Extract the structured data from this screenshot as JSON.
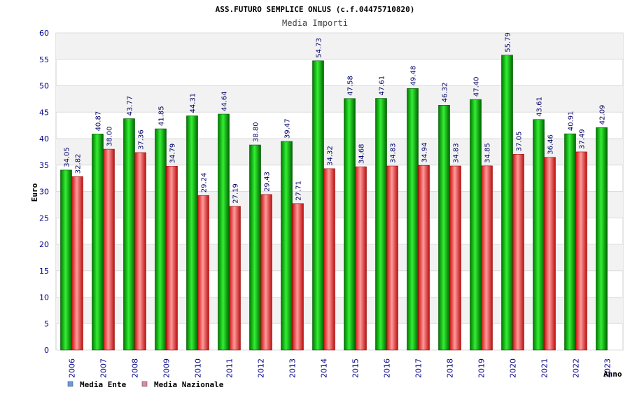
{
  "chart_data": {
    "type": "bar",
    "title": "ASS.FUTURO SEMPLICE ONLUS (c.f.04475710820)",
    "subtitle": "Media Importi",
    "xlabel": "Anno",
    "ylabel": "Euro",
    "ylim": [
      0,
      60
    ],
    "yticks": [
      "0",
      "5",
      "10",
      "15",
      "20",
      "25",
      "30",
      "35",
      "40",
      "45",
      "50",
      "55",
      "60"
    ],
    "grid": true,
    "legend_position": "bottom-left",
    "categories": [
      "2006",
      "2007",
      "2008",
      "2009",
      "2010",
      "2011",
      "2012",
      "2013",
      "2014",
      "2015",
      "2016",
      "2017",
      "2018",
      "2019",
      "2020",
      "2021",
      "2022",
      "2023"
    ],
    "series": [
      {
        "name": "Media Ente",
        "color": "#22cc22",
        "legend_color": "#6699ee",
        "values": [
          34.05,
          40.87,
          43.77,
          41.85,
          44.31,
          44.64,
          38.8,
          39.47,
          54.73,
          47.58,
          47.61,
          49.48,
          46.32,
          47.4,
          55.79,
          43.61,
          40.91,
          42.09
        ],
        "labels": [
          "34.05",
          "40.87",
          "43.77",
          "41.85",
          "44.31",
          "44.64",
          "38.80",
          "39.47",
          "54.73",
          "47.58",
          "47.61",
          "49.48",
          "46.32",
          "47.40",
          "55.79",
          "43.61",
          "40.91",
          "42.09"
        ]
      },
      {
        "name": "Media Nazionale",
        "color": "#ee3333",
        "legend_color": "#dd88aa",
        "values": [
          32.82,
          38.0,
          37.36,
          34.79,
          29.24,
          27.19,
          29.43,
          27.71,
          34.32,
          34.68,
          34.83,
          34.94,
          34.83,
          34.85,
          37.05,
          36.46,
          37.49,
          null
        ],
        "labels": [
          "32.82",
          "38.00",
          "37.36",
          "34.79",
          "29.24",
          "27.19",
          "29.43",
          "27.71",
          "34.32",
          "34.68",
          "34.83",
          "34.94",
          "34.83",
          "34.85",
          "37.05",
          "36.46",
          "37.49",
          null
        ]
      }
    ]
  }
}
